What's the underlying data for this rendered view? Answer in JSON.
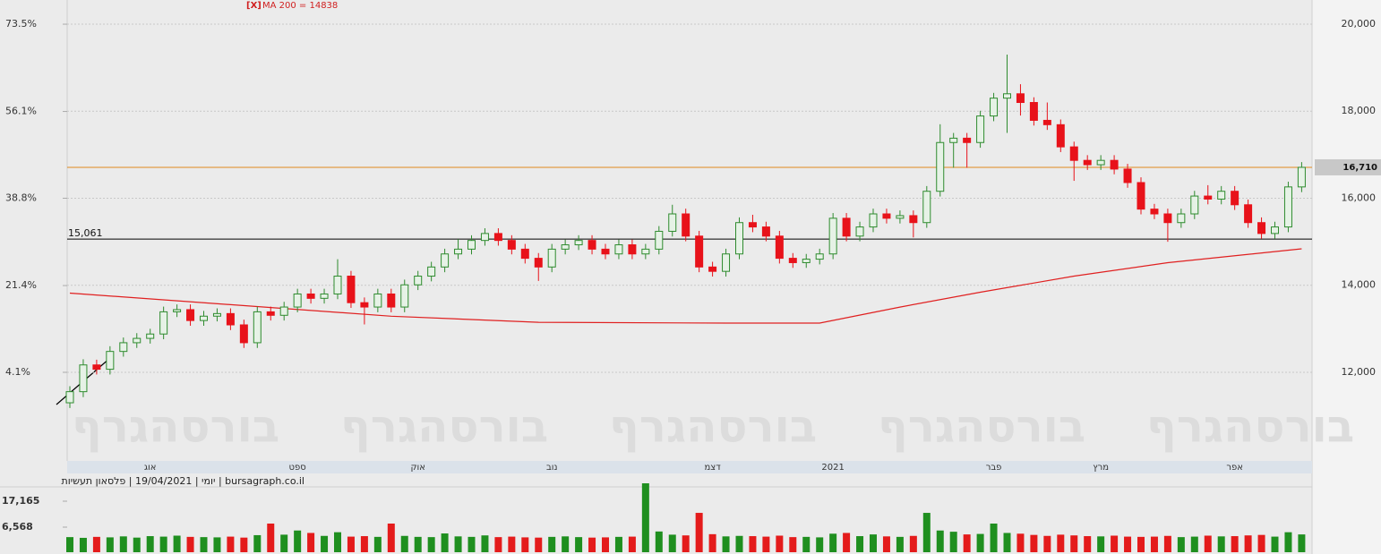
{
  "chart_data": {
    "type": "candlestick",
    "watermark": "בורסהגרף",
    "footer": "יומי | 19/04/2021 | פלסאון תעשיות | bursagraph.co.il",
    "ma_marker": "[X]",
    "ma_label": "MA 200 = 14838",
    "up_color": "#2e8b2e",
    "down_color": "#e8121a",
    "grid": true,
    "categories": [
      null,
      null,
      null,
      null,
      null,
      null,
      "אוג",
      null,
      null,
      null,
      null,
      null,
      null,
      null,
      null,
      null,
      null,
      "ספט",
      null,
      null,
      null,
      null,
      null,
      null,
      null,
      null,
      "אוק",
      null,
      null,
      null,
      null,
      null,
      null,
      null,
      null,
      null,
      "נוב",
      null,
      null,
      null,
      null,
      null,
      null,
      null,
      null,
      null,
      null,
      null,
      "דצמ",
      null,
      null,
      null,
      null,
      null,
      null,
      null,
      null,
      "2021",
      null,
      null,
      null,
      null,
      null,
      null,
      null,
      null,
      null,
      null,
      null,
      "פבר",
      null,
      null,
      null,
      null,
      null,
      null,
      null,
      "מרץ",
      null,
      null,
      null,
      null,
      null,
      null,
      null,
      null,
      null,
      "אפר",
      null,
      null,
      null,
      null,
      null
    ],
    "open": [
      11300,
      11555,
      12170,
      12070,
      12480,
      12680,
      12780,
      12880,
      13390,
      13440,
      13190,
      13290,
      13350,
      13090,
      12680,
      13390,
      13310,
      13500,
      13800,
      13700,
      13800,
      14210,
      13600,
      13500,
      13800,
      13500,
      14010,
      14210,
      14420,
      14720,
      14830,
      15030,
      15190,
      15030,
      14830,
      14620,
      14420,
      14830,
      14930,
      15030,
      14830,
      14720,
      14930,
      14720,
      14830,
      15240,
      15640,
      15130,
      14420,
      14320,
      14720,
      15440,
      15340,
      15130,
      14620,
      14520,
      14600,
      14720,
      15540,
      15130,
      15340,
      15640,
      15540,
      15600,
      15440,
      16160,
      17280,
      17380,
      17280,
      17890,
      18300,
      18400,
      18200,
      17790,
      17690,
      17180,
      16870,
      16770,
      16870,
      16670,
      16360,
      15750,
      15640,
      15440,
      15640,
      16050,
      15980,
      16160,
      15850,
      15440,
      15190,
      15340,
      16260
    ],
    "high": [
      11680,
      12300,
      12290,
      12600,
      12800,
      12900,
      13000,
      13510,
      13560,
      13560,
      13410,
      13470,
      13470,
      13210,
      13510,
      13510,
      13620,
      13920,
      13920,
      13920,
      14600,
      14330,
      13720,
      13920,
      13920,
      14130,
      14330,
      14540,
      14840,
      15060,
      15150,
      15310,
      15310,
      15150,
      14950,
      14740,
      14950,
      15050,
      15150,
      15150,
      14950,
      15050,
      15050,
      14950,
      15360,
      15850,
      15760,
      15250,
      14540,
      14840,
      15560,
      15620,
      15460,
      15250,
      14740,
      14720,
      14840,
      15660,
      15660,
      15460,
      15760,
      15760,
      15720,
      15720,
      16280,
      17700,
      17500,
      17500,
      18010,
      18420,
      19300,
      18620,
      18320,
      18200,
      17810,
      17300,
      16990,
      16990,
      16990,
      16790,
      16480,
      15870,
      15760,
      15760,
      16170,
      16300,
      16280,
      16280,
      15970,
      15560,
      15460,
      16380,
      16830
    ],
    "low": [
      11180,
      11430,
      11950,
      11950,
      12360,
      12560,
      12660,
      12760,
      13270,
      13070,
      13070,
      13170,
      12970,
      12560,
      12560,
      13190,
      13190,
      13380,
      13580,
      13580,
      13680,
      13480,
      13100,
      13380,
      13380,
      13380,
      13890,
      14090,
      14300,
      14600,
      14710,
      14910,
      14910,
      14710,
      14500,
      14100,
      14300,
      14710,
      14810,
      14710,
      14600,
      14600,
      14600,
      14600,
      14710,
      15120,
      15010,
      14300,
      14200,
      14200,
      14600,
      15220,
      15010,
      14500,
      14400,
      14400,
      14480,
      14600,
      15010,
      15010,
      15220,
      15420,
      15420,
      15100,
      15320,
      16040,
      16700,
      16700,
      17160,
      17770,
      17500,
      17900,
      17670,
      17570,
      17060,
      16400,
      16650,
      16650,
      16550,
      16240,
      15630,
      15520,
      15000,
      15320,
      15520,
      15860,
      15860,
      15730,
      15320,
      15070,
      15070,
      15220,
      16140
    ],
    "close": [
      11555,
      12170,
      12070,
      12480,
      12680,
      12780,
      12880,
      13390,
      13440,
      13190,
      13290,
      13350,
      13090,
      12680,
      13390,
      13310,
      13500,
      13800,
      13700,
      13800,
      14210,
      13600,
      13500,
      13800,
      13500,
      14010,
      14210,
      14420,
      14720,
      14830,
      15030,
      15190,
      15030,
      14830,
      14620,
      14420,
      14830,
      14930,
      15030,
      14830,
      14720,
      14930,
      14720,
      14830,
      15240,
      15640,
      15130,
      14420,
      14320,
      14720,
      15440,
      15340,
      15130,
      14620,
      14520,
      14600,
      14720,
      15540,
      15130,
      15340,
      15640,
      15540,
      15600,
      15440,
      16160,
      17280,
      17380,
      17280,
      17890,
      18300,
      18400,
      18200,
      17790,
      17690,
      17180,
      16870,
      16770,
      16870,
      16670,
      16360,
      15750,
      15640,
      15440,
      15640,
      16050,
      15980,
      16160,
      15850,
      15440,
      15190,
      15340,
      16260,
      16710
    ],
    "ma": {
      "color": "#e02020",
      "x": [
        0,
        24,
        35,
        49,
        56,
        62,
        68,
        75,
        82,
        92
      ],
      "values": [
        13820,
        13290,
        13150,
        13130,
        13130,
        13500,
        13840,
        14210,
        14520,
        14838
      ]
    },
    "levels": [
      {
        "value": 16710,
        "label": "16,710",
        "color": "#e08a1e"
      },
      {
        "value": 15061,
        "label": "15,061",
        "color": "#000000"
      }
    ],
    "ylim": [
      9964,
      20555
    ],
    "yticks": [
      {
        "value": 12000,
        "label": "12,000"
      },
      {
        "value": 14000,
        "label": "14,000"
      },
      {
        "value": 16000,
        "label": "16,000"
      },
      {
        "value": 18000,
        "label": "18,000"
      },
      {
        "value": 20000,
        "label": "20,000"
      }
    ],
    "y2lim": [
      -13.56,
      78.32
    ],
    "y2ticks": [
      {
        "value": 4.1,
        "label": "4.1%"
      },
      {
        "value": 21.4,
        "label": "21.4%"
      },
      {
        "value": 38.8,
        "label": "38.8%"
      },
      {
        "value": 56.1,
        "label": "56.1%"
      },
      {
        "value": 73.5,
        "label": "73.5%"
      }
    ],
    "volume": {
      "ylim": [
        -3663,
        25204
      ],
      "yticks": [
        {
          "value": 6568,
          "label": "6,568"
        },
        {
          "value": 17165,
          "label": "17,165"
        }
      ],
      "values": [
        2500,
        2200,
        2600,
        2400,
        2800,
        2300,
        2900,
        2700,
        3100,
        2600,
        2500,
        2400,
        2700,
        2300,
        3300,
        8030,
        3500,
        5200,
        4200,
        3000,
        4500,
        2700,
        2900,
        2600,
        8030,
        3000,
        2600,
        2500,
        4000,
        2800,
        2600,
        3200,
        2500,
        2700,
        2400,
        2300,
        2600,
        2800,
        2500,
        2300,
        2400,
        2600,
        2700,
        24470,
        4800,
        3500,
        3200,
        12400,
        3700,
        2800,
        3000,
        2900,
        2700,
        3100,
        2500,
        2600,
        2400,
        3900,
        4200,
        2900,
        3600,
        2800,
        2600,
        3000,
        12400,
        5200,
        4700,
        3600,
        3800,
        8030,
        4200,
        3900,
        3400,
        3000,
        3500,
        3200,
        2900,
        2800,
        3100,
        2700,
        2600,
        2700,
        3000,
        2500,
        2700,
        3100,
        2800,
        2900,
        3200,
        3400,
        2700,
        4500,
        3600
      ]
    }
  }
}
